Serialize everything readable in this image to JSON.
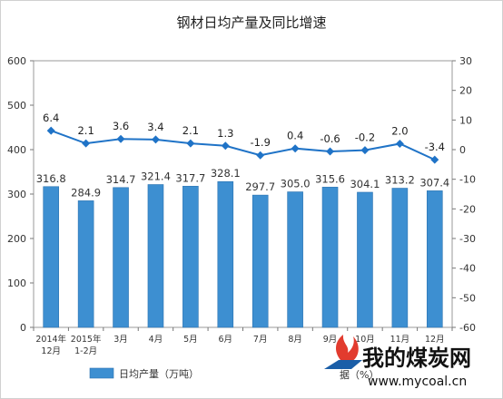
{
  "chart_data": {
    "type": "bar",
    "title": "钢材日均产量及同比增速",
    "categories": [
      "2014年\n12月",
      "2015年\n1-2月",
      "3月",
      "4月",
      "5月",
      "6月",
      "7月",
      "8月",
      "9月",
      "10月",
      "11月",
      "12月"
    ],
    "series": [
      {
        "name": "日均产量（万吨）",
        "type": "bar",
        "axis": "left",
        "values": [
          316.8,
          284.9,
          314.7,
          321.4,
          317.7,
          328.1,
          297.7,
          305.0,
          315.6,
          304.1,
          313.2,
          307.4
        ]
      },
      {
        "name": "",
        "type": "line",
        "axis": "right",
        "values": [
          6.4,
          2.1,
          3.6,
          3.4,
          2.1,
          1.3,
          -1.9,
          0.4,
          -0.6,
          -0.2,
          2.0,
          -3.4
        ]
      }
    ],
    "ylim_left": [
      0,
      600
    ],
    "yticks_left": [
      0,
      100,
      200,
      300,
      400,
      500,
      600
    ],
    "ylim_right": [
      -60,
      30
    ],
    "yticks_right": [
      -60,
      -50,
      -40,
      -30,
      -20,
      -10,
      0,
      10,
      20,
      30
    ],
    "grid": false,
    "legend_position": "bottom-left",
    "colors": {
      "bar": "#3d8fd1",
      "bar_edge": "#2c73b0",
      "line": "#1f73c7",
      "marker": "#1f73c7"
    }
  },
  "watermark": {
    "brand": "我的煤炭网",
    "url": "www.mycoal.cn",
    "source_fragment": "据（%）"
  }
}
